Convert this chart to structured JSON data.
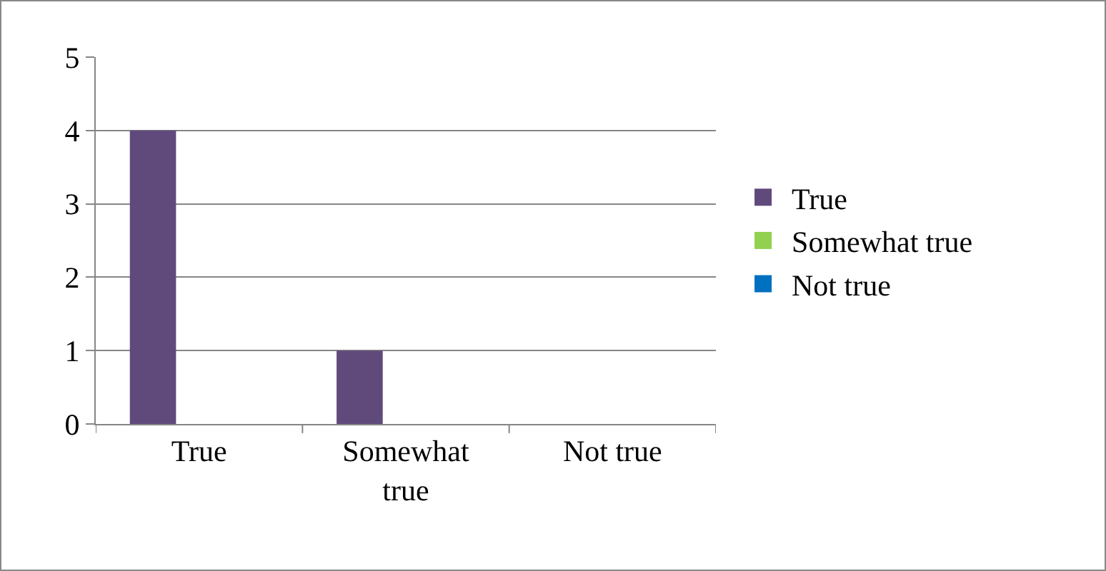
{
  "chart_data": {
    "type": "bar",
    "categories": [
      "True",
      "Somewhat true",
      "Not true"
    ],
    "series": [
      {
        "name": "True",
        "color": "#604a7b",
        "values": [
          4,
          1,
          0
        ]
      },
      {
        "name": "Somewhat true",
        "color": "#92d050",
        "values": [
          0,
          0,
          0
        ]
      },
      {
        "name": "Not true",
        "color": "#0070c0",
        "values": [
          0,
          0,
          0
        ]
      }
    ],
    "ylim": [
      0,
      5
    ],
    "yticks": [
      0,
      1,
      2,
      3,
      4,
      5
    ],
    "grid": "y",
    "legend": "right"
  }
}
